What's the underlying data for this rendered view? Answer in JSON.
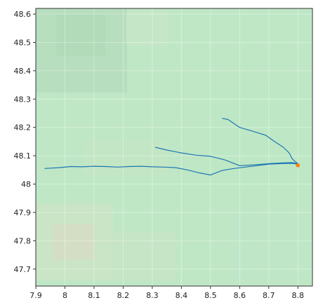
{
  "chart_data": {
    "type": "line",
    "xlim": [
      7.9,
      8.85
    ],
    "ylim": [
      47.64,
      48.62
    ],
    "x_ticks": [
      7.9,
      8.0,
      8.1,
      8.2,
      8.3,
      8.4,
      8.5,
      8.6,
      8.7,
      8.8
    ],
    "x_tick_labels": [
      "7.9",
      "8",
      "8.1",
      "8.2",
      "8.3",
      "8.4",
      "8.5",
      "8.6",
      "8.7",
      "8.8"
    ],
    "y_ticks": [
      47.7,
      47.8,
      47.9,
      48.0,
      48.1,
      48.2,
      48.3,
      48.4,
      48.5,
      48.6
    ],
    "y_tick_labels": [
      "47.7",
      "47.8",
      "47.9",
      "48",
      "48.1",
      "48.2",
      "48.3",
      "48.4",
      "48.5",
      "48.6"
    ],
    "grid": true,
    "colors": {
      "track": "#1f77b4",
      "marker": "#ff7f0e",
      "background": "#b9e6c2"
    },
    "series": [
      {
        "x": [
          7.93,
          7.98,
          8.02,
          8.06,
          8.1,
          8.14,
          8.18,
          8.22,
          8.26,
          8.3,
          8.34,
          8.38,
          8.42,
          8.46,
          8.5,
          8.54,
          8.58,
          8.62,
          8.66,
          8.7,
          8.74,
          8.78,
          8.8
        ],
        "y": [
          48.055,
          48.058,
          48.062,
          48.061,
          48.063,
          48.062,
          48.06,
          48.062,
          48.063,
          48.061,
          48.06,
          48.058,
          48.05,
          48.04,
          48.032,
          48.048,
          48.055,
          48.06,
          48.065,
          48.07,
          48.072,
          48.073,
          48.07
        ]
      },
      {
        "x": [
          8.31,
          8.35,
          8.4,
          8.45,
          8.5,
          8.55,
          8.6,
          8.65,
          8.7,
          8.75,
          8.78,
          8.8
        ],
        "y": [
          48.13,
          48.12,
          48.11,
          48.102,
          48.098,
          48.085,
          48.065,
          48.068,
          48.072,
          48.075,
          48.076,
          48.072
        ]
      },
      {
        "x": [
          8.54,
          8.56,
          8.6,
          8.65,
          8.69,
          8.72,
          8.75,
          8.77,
          8.78,
          8.79,
          8.8
        ],
        "y": [
          48.232,
          48.228,
          48.2,
          48.185,
          48.172,
          48.15,
          48.13,
          48.11,
          48.09,
          48.08,
          48.072
        ]
      }
    ],
    "marker": {
      "x": 8.8,
      "y": 48.066
    }
  }
}
